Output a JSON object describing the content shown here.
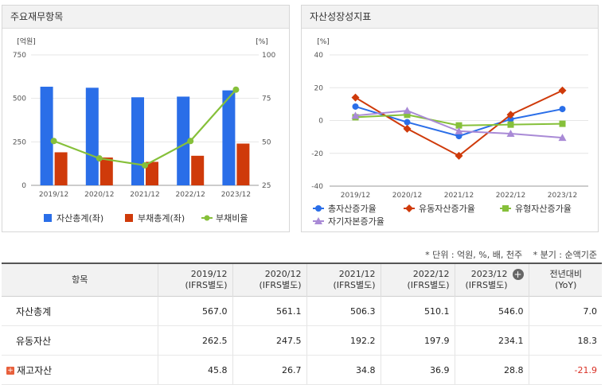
{
  "panels": {
    "left_title": "주요재무항목",
    "right_title": "자산성장성지표"
  },
  "chart_data": [
    {
      "type": "bar",
      "title": "주요재무항목",
      "categories": [
        "2019/12",
        "2020/12",
        "2021/12",
        "2022/12",
        "2023/12"
      ],
      "ylabel_left": "[억원]",
      "ylabel_right": "[%]",
      "ylim_left": [
        0,
        750
      ],
      "ylim_right": [
        25,
        100
      ],
      "yticks_left": [
        "750",
        "500",
        "250",
        "0"
      ],
      "yticks_right": [
        "100",
        "75",
        "50",
        "25"
      ],
      "series": [
        {
          "name": "자산총계(좌)",
          "type": "bar",
          "axis": "left",
          "color": "#2a6ee8",
          "values": [
            567.0,
            561.1,
            506.3,
            510.1,
            546.0
          ]
        },
        {
          "name": "부채총계(좌)",
          "type": "bar",
          "axis": "left",
          "color": "#cf3a0a",
          "values": [
            190,
            160,
            135,
            170,
            240
          ]
        },
        {
          "name": "부채비율",
          "type": "line",
          "axis": "right",
          "color": "#86c03a",
          "values": [
            50.5,
            40.5,
            36.5,
            50.5,
            80.0
          ]
        }
      ],
      "legend_position": "bottom"
    },
    {
      "type": "line",
      "title": "자산성장성지표",
      "categories": [
        "2019/12",
        "2020/12",
        "2021/12",
        "2022/12",
        "2023/12"
      ],
      "ylabel": "[%]",
      "ylim": [
        -40,
        40
      ],
      "yticks": [
        "40",
        "20",
        "0",
        "-20",
        "-40"
      ],
      "series": [
        {
          "name": "총자산증가율",
          "color": "#2a6ee8",
          "marker": "circle",
          "values": [
            8.5,
            -1.0,
            -9.5,
            0.8,
            7.0
          ]
        },
        {
          "name": "유동자산증가율",
          "color": "#cf3a0a",
          "marker": "diamond",
          "values": [
            14.0,
            -5.0,
            -21.5,
            3.5,
            18.3
          ]
        },
        {
          "name": "유형자산증가율",
          "color": "#86c03a",
          "marker": "square",
          "values": [
            2.0,
            3.5,
            -3.0,
            -2.5,
            -2.0
          ]
        },
        {
          "name": "자기자본증가율",
          "color": "#a98ad6",
          "marker": "triangle",
          "values": [
            3.0,
            6.0,
            -6.5,
            -8.0,
            -10.5
          ]
        }
      ],
      "legend_position": "bottom"
    }
  ],
  "notes": {
    "unit": "* 단위 : 억원, %, 배, 천주",
    "period": "* 분기 : 순액기준"
  },
  "table": {
    "item_header": "항목",
    "periods": [
      {
        "year": "2019/12",
        "basis": "(IFRS별도)"
      },
      {
        "year": "2020/12",
        "basis": "(IFRS별도)"
      },
      {
        "year": "2021/12",
        "basis": "(IFRS별도)"
      },
      {
        "year": "2022/12",
        "basis": "(IFRS별도)"
      },
      {
        "year": "2023/12",
        "basis": "(IFRS별도)"
      }
    ],
    "yoy_header_1": "전년대비",
    "yoy_header_2": "(YoY)",
    "rows": [
      {
        "name": "자산총계",
        "values": [
          "567.0",
          "561.1",
          "506.3",
          "510.1",
          "546.0"
        ],
        "yoy": "7.0"
      },
      {
        "name": "유동자산",
        "values": [
          "262.5",
          "247.5",
          "192.2",
          "197.9",
          "234.1"
        ],
        "yoy": "18.3"
      },
      {
        "name": "재고자산",
        "values": [
          "45.8",
          "26.7",
          "34.8",
          "36.9",
          "28.8"
        ],
        "yoy": "-21.9"
      }
    ]
  }
}
